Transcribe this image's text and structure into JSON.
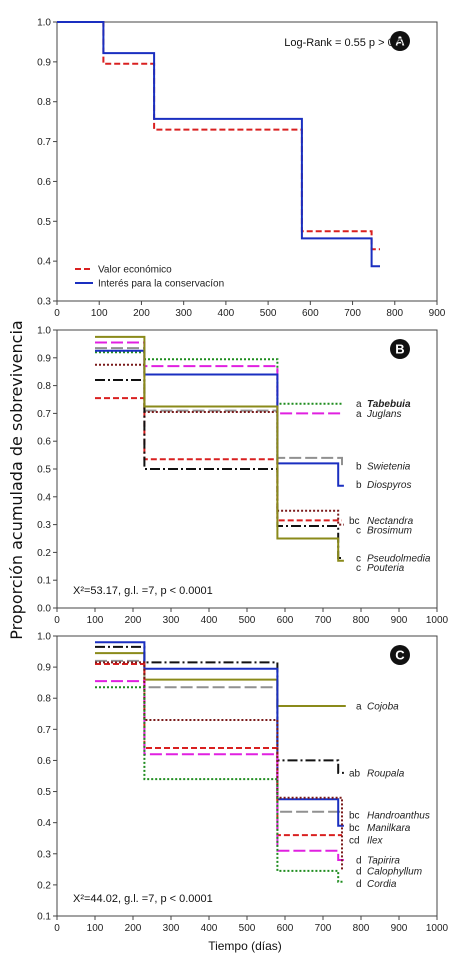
{
  "y_axis_label": "Proporción acumulada de sobrevivencia",
  "x_axis_label": "Tiempo (días)",
  "chart_data": [
    {
      "panel": "A",
      "type": "line",
      "step": true,
      "annotation": "Log-Rank = 0.55 p > 0.57",
      "xlim": [
        0,
        900
      ],
      "ylim": [
        0.3,
        1.0
      ],
      "xticks": [
        0,
        100,
        200,
        300,
        400,
        500,
        600,
        700,
        800,
        900
      ],
      "yticks": [
        0.3,
        0.4,
        0.5,
        0.6,
        0.7,
        0.8,
        0.9,
        1.0
      ],
      "legend": "bottom-left",
      "series": [
        {
          "name": "Valor económico",
          "color": "#d92020",
          "dash": "dashed",
          "x": [
            0,
            110,
            230,
            580,
            745,
            765
          ],
          "y": [
            1.0,
            0.895,
            0.73,
            0.475,
            0.43,
            0.43
          ]
        },
        {
          "name": "Interés para la conservacíon",
          "color": "#1a2fc0",
          "dash": "solid",
          "x": [
            0,
            110,
            230,
            580,
            745,
            765
          ],
          "y": [
            1.0,
            0.922,
            0.757,
            0.457,
            0.387,
            0.387
          ]
        }
      ]
    },
    {
      "panel": "B",
      "type": "line",
      "step": true,
      "annotation": "X²=53.17, g.l. =7, p < 0.0001",
      "xlim": [
        0,
        1000
      ],
      "ylim": [
        0.0,
        1.0
      ],
      "xticks": [
        0,
        100,
        200,
        300,
        400,
        500,
        600,
        700,
        800,
        900,
        1000
      ],
      "yticks": [
        0.0,
        0.1,
        0.2,
        0.3,
        0.4,
        0.5,
        0.6,
        0.7,
        0.8,
        0.9,
        1.0
      ],
      "series": [
        {
          "name": "Tabebuia",
          "group": "a",
          "color": "#1e8c1e",
          "dash": "dotted",
          "x": [
            100,
            230,
            580,
            750
          ],
          "y": [
            0.92,
            0.895,
            0.735,
            0.735
          ]
        },
        {
          "name": "Juglans",
          "group": "a",
          "color": "#e020e0",
          "dash": "longdash",
          "x": [
            100,
            230,
            580,
            750
          ],
          "y": [
            0.955,
            0.87,
            0.7,
            0.7
          ]
        },
        {
          "name": "Swietenia",
          "group": "b",
          "color": "#909090",
          "dash": "longdash",
          "x": [
            100,
            230,
            580,
            750
          ],
          "y": [
            0.935,
            0.71,
            0.54,
            0.51
          ]
        },
        {
          "name": "Diospyros",
          "group": "b",
          "color": "#1a2fc0",
          "dash": "solid",
          "x": [
            100,
            230,
            580,
            740,
            755
          ],
          "y": [
            0.925,
            0.84,
            0.52,
            0.44,
            0.44
          ]
        },
        {
          "name": "Nectandra",
          "group": "bc",
          "color": "#d92020",
          "dash": "dashed",
          "x": [
            100,
            230,
            580,
            750
          ],
          "y": [
            0.755,
            0.535,
            0.315,
            0.315
          ]
        },
        {
          "name": "Brosimum",
          "group": "c",
          "color": "#7a1a1a",
          "dash": "dotted",
          "x": [
            100,
            230,
            580,
            740,
            755
          ],
          "y": [
            0.875,
            0.705,
            0.35,
            0.3,
            0.3
          ]
        },
        {
          "name": "Pseudolmedia",
          "group": "c",
          "color": "#111111",
          "dash": "dashdot",
          "x": [
            100,
            230,
            580,
            740,
            755
          ],
          "y": [
            0.82,
            0.5,
            0.295,
            0.18,
            0.18
          ]
        },
        {
          "name": "Pouteria",
          "group": "c",
          "color": "#8a8a1a",
          "dash": "solid",
          "x": [
            100,
            230,
            580,
            740,
            755
          ],
          "y": [
            0.975,
            0.725,
            0.25,
            0.17,
            0.17
          ]
        }
      ]
    },
    {
      "panel": "C",
      "type": "line",
      "step": true,
      "annotation": "X²=44.02, g.l. =7, p < 0.0001",
      "xlim": [
        0,
        1000
      ],
      "ylim": [
        0.1,
        1.0
      ],
      "xticks": [
        0,
        100,
        200,
        300,
        400,
        500,
        600,
        700,
        800,
        900,
        1000
      ],
      "yticks": [
        0.1,
        0.2,
        0.3,
        0.4,
        0.5,
        0.6,
        0.7,
        0.8,
        0.9,
        1.0
      ],
      "series": [
        {
          "name": "Cojoba",
          "group": "a",
          "color": "#8a8a1a",
          "dash": "solid",
          "x": [
            100,
            230,
            580,
            760
          ],
          "y": [
            0.945,
            0.86,
            0.775,
            0.775
          ]
        },
        {
          "name": "Roupala",
          "group": "ab",
          "color": "#111111",
          "dash": "dashdot",
          "x": [
            100,
            230,
            580,
            740,
            755
          ],
          "y": [
            0.965,
            0.915,
            0.6,
            0.56,
            0.56
          ]
        },
        {
          "name": "Handroanthus",
          "group": "bc",
          "color": "#909090",
          "dash": "longdash",
          "x": [
            100,
            230,
            580,
            750
          ],
          "y": [
            0.92,
            0.835,
            0.435,
            0.435
          ]
        },
        {
          "name": "Manilkara",
          "group": "bc",
          "color": "#1a2fc0",
          "dash": "solid",
          "x": [
            100,
            230,
            580,
            740,
            755
          ],
          "y": [
            0.98,
            0.895,
            0.475,
            0.39,
            0.39
          ]
        },
        {
          "name": "Ilex",
          "group": "cd",
          "color": "#d92020",
          "dash": "dashed",
          "x": [
            100,
            230,
            580,
            750
          ],
          "y": [
            0.91,
            0.64,
            0.36,
            0.36
          ]
        },
        {
          "name": "Tapirira",
          "group": "d",
          "color": "#e020e0",
          "dash": "longdash",
          "x": [
            100,
            230,
            580,
            740,
            755
          ],
          "y": [
            0.855,
            0.62,
            0.31,
            0.28,
            0.28
          ]
        },
        {
          "name": "Calophyllum",
          "group": "d",
          "color": "#7a1a1a",
          "dash": "dotted",
          "x": [
            100,
            230,
            580,
            750
          ],
          "y": [
            0.915,
            0.73,
            0.48,
            0.245
          ]
        },
        {
          "name": "Cordia",
          "group": "d",
          "color": "#1e8c1e",
          "dash": "dotted",
          "x": [
            100,
            230,
            580,
            740,
            755
          ],
          "y": [
            0.835,
            0.54,
            0.245,
            0.21,
            0.21
          ]
        }
      ]
    }
  ],
  "series_labels": {
    "B": [
      {
        "group": "a",
        "name": "Tabebuia",
        "y": 0.735,
        "bold": true
      },
      {
        "group": "a",
        "name": "Juglans",
        "y": 0.7
      },
      {
        "group": "b",
        "name": "Swietenia",
        "y": 0.51
      },
      {
        "group": "b",
        "name": "Diospyros",
        "y": 0.445
      },
      {
        "group": "bc",
        "name": "Nectandra",
        "y": 0.315
      },
      {
        "group": "c",
        "name": "Brosimum",
        "y": 0.28
      },
      {
        "group": "c",
        "name": "Pseudolmedia",
        "y": 0.18
      },
      {
        "group": "c",
        "name": "Pouteria",
        "y": 0.145
      }
    ],
    "C": [
      {
        "group": "a",
        "name": "Cojoba",
        "y": 0.775
      },
      {
        "group": "ab",
        "name": "Roupala",
        "y": 0.56
      },
      {
        "group": "bc",
        "name": "Handroanthus",
        "y": 0.425
      },
      {
        "group": "bc",
        "name": "Manilkara",
        "y": 0.385
      },
      {
        "group": "cd",
        "name": "Ilex",
        "y": 0.345
      },
      {
        "group": "d",
        "name": "Tapirira",
        "y": 0.28
      },
      {
        "group": "d",
        "name": "Calophyllum",
        "y": 0.245
      },
      {
        "group": "d",
        "name": "Cordia",
        "y": 0.205
      }
    ]
  }
}
